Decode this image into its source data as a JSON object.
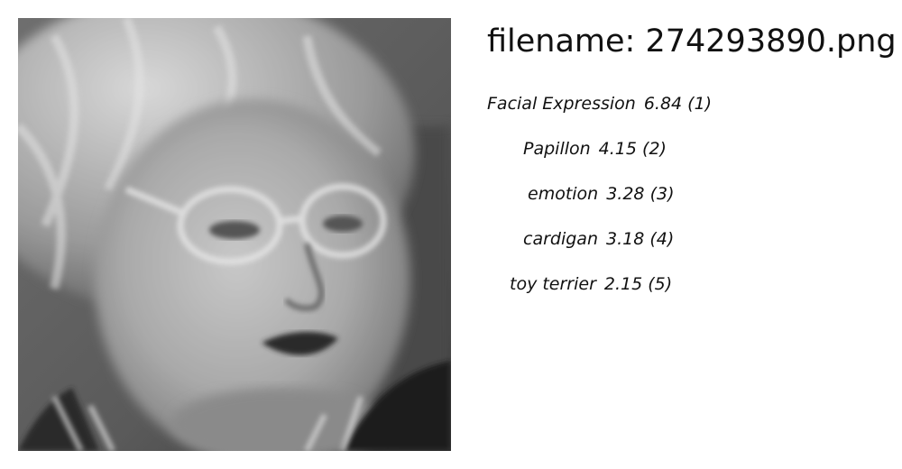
{
  "image": {
    "subject": "grayscale close-up face photo"
  },
  "header": {
    "filename_text": "filename: 274293890.png"
  },
  "predictions": [
    {
      "label": "Facial Expression",
      "score": "6.84",
      "rank": "(1)"
    },
    {
      "label": "Papillon",
      "score": "4.15",
      "rank": "(2)"
    },
    {
      "label": "emotion",
      "score": "3.28",
      "rank": "(3)"
    },
    {
      "label": "cardigan",
      "score": "3.18",
      "rank": "(4)"
    },
    {
      "label": "toy terrier",
      "score": "2.15",
      "rank": "(5)"
    }
  ]
}
